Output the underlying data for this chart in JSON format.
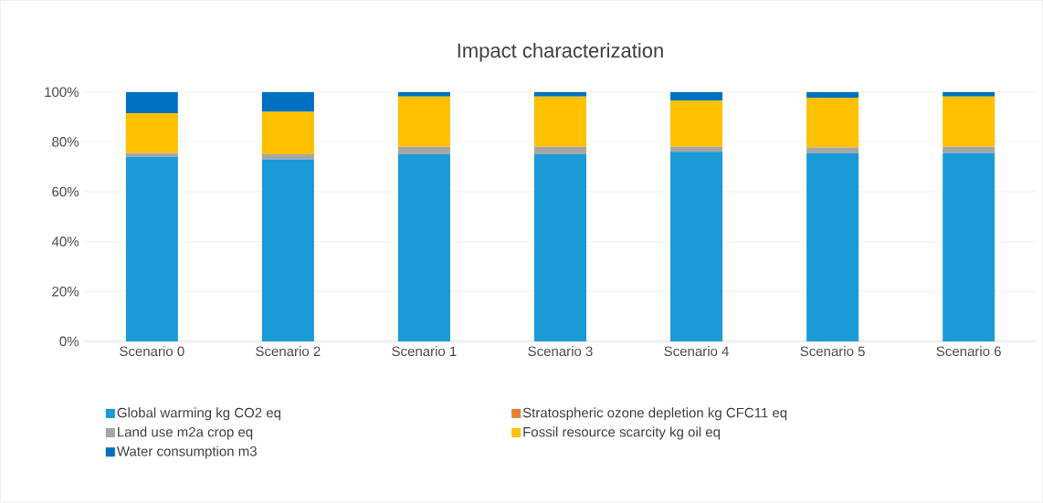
{
  "chart_data": {
    "type": "bar",
    "title": "Impact characterization",
    "stacked": true,
    "categories": [
      "Scenario 0",
      "Scenario 2",
      "Scenario 1",
      "Scenario 3",
      "Scenario 4",
      "Scenario 5",
      "Scenario 6"
    ],
    "series": [
      {
        "name": "Global warming kg CO2 eq",
        "color": "#1a9ad6",
        "values": [
          74,
          73,
          75,
          75,
          76,
          75.5,
          75.5
        ]
      },
      {
        "name": "Stratospheric ozone depletion kg CFC11 eq",
        "color": "#ed7d31",
        "values": [
          0,
          0,
          0,
          0,
          0,
          0,
          0
        ]
      },
      {
        "name": "Land use m2a crop eq",
        "color": "#a5a5a5",
        "values": [
          1.5,
          2,
          3,
          3,
          2,
          2.3,
          2.5
        ]
      },
      {
        "name": "Fossil resource scarcity kg oil eq",
        "color": "#ffc000",
        "values": [
          16,
          17,
          20.2,
          20.2,
          18.5,
          19.9,
          20.2
        ]
      },
      {
        "name": "Water consumption m3",
        "color": "#0070c0",
        "values": [
          8.5,
          8,
          1.8,
          1.8,
          3.5,
          2.3,
          1.8
        ]
      }
    ],
    "ylim": [
      0,
      100
    ],
    "yticks": [
      {
        "value": 0,
        "label": "0%"
      },
      {
        "value": 20,
        "label": "20%"
      },
      {
        "value": 40,
        "label": "40%"
      },
      {
        "value": 60,
        "label": "60%"
      },
      {
        "value": 80,
        "label": "80%"
      },
      {
        "value": 100,
        "label": "100%"
      }
    ],
    "grid": "y",
    "legend": "bottom"
  }
}
